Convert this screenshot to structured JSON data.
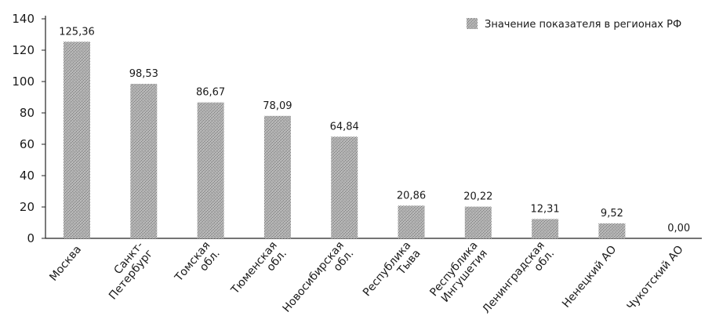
{
  "chart_data": {
    "type": "bar",
    "title": "",
    "xlabel": "",
    "ylabel": "",
    "ylim": [
      0,
      140
    ],
    "yticks": [
      0,
      20,
      40,
      60,
      80,
      100,
      120,
      140
    ],
    "grid": false,
    "legend_position": "top-right",
    "legend": [
      "Значение показателя в регионах РФ"
    ],
    "categories": [
      [
        "Москва"
      ],
      [
        "Санкт-",
        "Петербург"
      ],
      [
        "Томская",
        "обл."
      ],
      [
        "Тюменская",
        "обл."
      ],
      [
        "Новосибирская",
        "обл."
      ],
      [
        "Республика",
        "Тыва"
      ],
      [
        "Республика",
        "Ингушетия"
      ],
      [
        "Ленинградская",
        "обл."
      ],
      [
        "Ненецкий АО"
      ],
      [
        "Чукотский АО"
      ]
    ],
    "series": [
      {
        "name": "Значение показателя в регионах РФ",
        "values": [
          125.36,
          98.53,
          86.67,
          78.09,
          64.84,
          20.86,
          20.22,
          12.31,
          9.52,
          0.0
        ],
        "labels": [
          "125,36",
          "98,53",
          "86,67",
          "78,09",
          "64,84",
          "20,86",
          "20,22",
          "12,31",
          "9,52",
          "0,00"
        ]
      }
    ],
    "colors": {
      "bar": "#8a8a8a",
      "axis": "#222222"
    }
  }
}
